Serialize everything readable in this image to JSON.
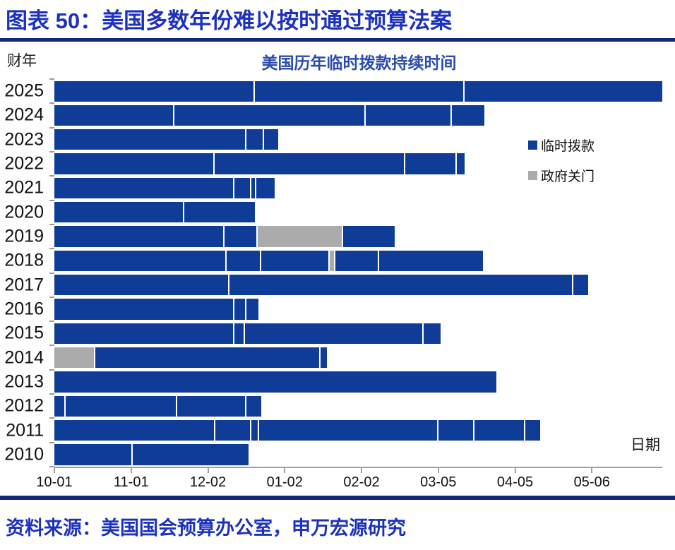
{
  "page": {
    "header_title": "图表 50：美国多数年份难以按时通过预算法案",
    "source_text": "资料来源：美国国会预算办公室，申万宏源研究"
  },
  "colors": {
    "accent_blue": "#1d32bc",
    "chart_title_blue": "#2b4cad",
    "bar_blue": "#0e3c96",
    "shutdown_gray": "#ababab",
    "separator_navy": "#12287c",
    "axis_gray": "#a0a0a0"
  },
  "chart_data": {
    "type": "bar",
    "orientation": "horizontal stacked timeline",
    "title": "美国历年临时拨款持续时间",
    "ylabel": "财年",
    "xlabel": "日期",
    "x_unit": "days since fiscal year start (10-01)",
    "xlim": [
      0,
      246
    ],
    "grid": false,
    "legend_position": "right-inside",
    "x_ticks": [
      {
        "label": "10-01",
        "day": 0
      },
      {
        "label": "11-01",
        "day": 31
      },
      {
        "label": "12-02",
        "day": 62
      },
      {
        "label": "01-02",
        "day": 93
      },
      {
        "label": "02-02",
        "day": 124
      },
      {
        "label": "03-05",
        "day": 155
      },
      {
        "label": "04-05",
        "day": 186
      },
      {
        "label": "05-06",
        "day": 217
      }
    ],
    "legend": [
      {
        "key": "cr",
        "label": "临时拨款",
        "color": "#0e3c96"
      },
      {
        "key": "shutdown",
        "label": "政府关门",
        "color": "#ababab"
      }
    ],
    "rows": [
      {
        "year": "2025",
        "segments": [
          {
            "type": "cr",
            "start": 0,
            "end": 80.5
          },
          {
            "type": "cr",
            "start": 80.5,
            "end": 165
          },
          {
            "type": "cr",
            "start": 165,
            "end": 245.5
          }
        ]
      },
      {
        "year": "2024",
        "segments": [
          {
            "type": "cr",
            "start": 0,
            "end": 48
          },
          {
            "type": "cr",
            "start": 48,
            "end": 125
          },
          {
            "type": "cr",
            "start": 125,
            "end": 160
          },
          {
            "type": "cr",
            "start": 160,
            "end": 173.5
          }
        ]
      },
      {
        "year": "2023",
        "segments": [
          {
            "type": "cr",
            "start": 0,
            "end": 77
          },
          {
            "type": "cr",
            "start": 77,
            "end": 84
          },
          {
            "type": "cr",
            "start": 84,
            "end": 90.5
          }
        ]
      },
      {
        "year": "2022",
        "segments": [
          {
            "type": "cr",
            "start": 0,
            "end": 64
          },
          {
            "type": "cr",
            "start": 64,
            "end": 141
          },
          {
            "type": "cr",
            "start": 141,
            "end": 162
          },
          {
            "type": "cr",
            "start": 162,
            "end": 165.5
          }
        ]
      },
      {
        "year": "2021",
        "segments": [
          {
            "type": "cr",
            "start": 0,
            "end": 72
          },
          {
            "type": "cr",
            "start": 72,
            "end": 79
          },
          {
            "type": "cr",
            "start": 79,
            "end": 81
          },
          {
            "type": "cr",
            "start": 81,
            "end": 89
          }
        ]
      },
      {
        "year": "2020",
        "segments": [
          {
            "type": "cr",
            "start": 0,
            "end": 52
          },
          {
            "type": "cr",
            "start": 52,
            "end": 81
          }
        ]
      },
      {
        "year": "2019",
        "segments": [
          {
            "type": "cr",
            "start": 0,
            "end": 68
          },
          {
            "type": "cr",
            "start": 68,
            "end": 81.5
          },
          {
            "type": "shutdown",
            "start": 81.5,
            "end": 116
          },
          {
            "type": "cr",
            "start": 116,
            "end": 137.5
          }
        ]
      },
      {
        "year": "2018",
        "segments": [
          {
            "type": "cr",
            "start": 0,
            "end": 69
          },
          {
            "type": "cr",
            "start": 69,
            "end": 83
          },
          {
            "type": "cr",
            "start": 83,
            "end": 110.5
          },
          {
            "type": "shutdown",
            "start": 110.5,
            "end": 113
          },
          {
            "type": "cr",
            "start": 113,
            "end": 130.5
          },
          {
            "type": "cr",
            "start": 130.5,
            "end": 173
          }
        ]
      },
      {
        "year": "2017",
        "segments": [
          {
            "type": "cr",
            "start": 0,
            "end": 70
          },
          {
            "type": "cr",
            "start": 70,
            "end": 209
          },
          {
            "type": "cr",
            "start": 209,
            "end": 215.5
          }
        ]
      },
      {
        "year": "2016",
        "segments": [
          {
            "type": "cr",
            "start": 0,
            "end": 72
          },
          {
            "type": "cr",
            "start": 72,
            "end": 77
          },
          {
            "type": "cr",
            "start": 77,
            "end": 82.5
          }
        ]
      },
      {
        "year": "2015",
        "segments": [
          {
            "type": "cr",
            "start": 0,
            "end": 72
          },
          {
            "type": "cr",
            "start": 72,
            "end": 76.5
          },
          {
            "type": "cr",
            "start": 76.5,
            "end": 148.5
          },
          {
            "type": "cr",
            "start": 148.5,
            "end": 156
          }
        ]
      },
      {
        "year": "2014",
        "segments": [
          {
            "type": "shutdown",
            "start": 0,
            "end": 16
          },
          {
            "type": "cr",
            "start": 16,
            "end": 107
          },
          {
            "type": "cr",
            "start": 107,
            "end": 110
          }
        ]
      },
      {
        "year": "2013",
        "segments": [
          {
            "type": "cr",
            "start": 0,
            "end": 178.5
          }
        ]
      },
      {
        "year": "2012",
        "segments": [
          {
            "type": "cr",
            "start": 0,
            "end": 4
          },
          {
            "type": "cr",
            "start": 4,
            "end": 49
          },
          {
            "type": "cr",
            "start": 49,
            "end": 77
          },
          {
            "type": "cr",
            "start": 77,
            "end": 83.5
          }
        ]
      },
      {
        "year": "2011",
        "segments": [
          {
            "type": "cr",
            "start": 0,
            "end": 64.5
          },
          {
            "type": "cr",
            "start": 64.5,
            "end": 79
          },
          {
            "type": "cr",
            "start": 79,
            "end": 82
          },
          {
            "type": "cr",
            "start": 82,
            "end": 154.5
          },
          {
            "type": "cr",
            "start": 154.5,
            "end": 169
          },
          {
            "type": "cr",
            "start": 169,
            "end": 189.5
          },
          {
            "type": "cr",
            "start": 189.5,
            "end": 196
          }
        ]
      },
      {
        "year": "2010",
        "segments": [
          {
            "type": "cr",
            "start": 0,
            "end": 31
          },
          {
            "type": "cr",
            "start": 31,
            "end": 78.5
          }
        ]
      }
    ]
  }
}
